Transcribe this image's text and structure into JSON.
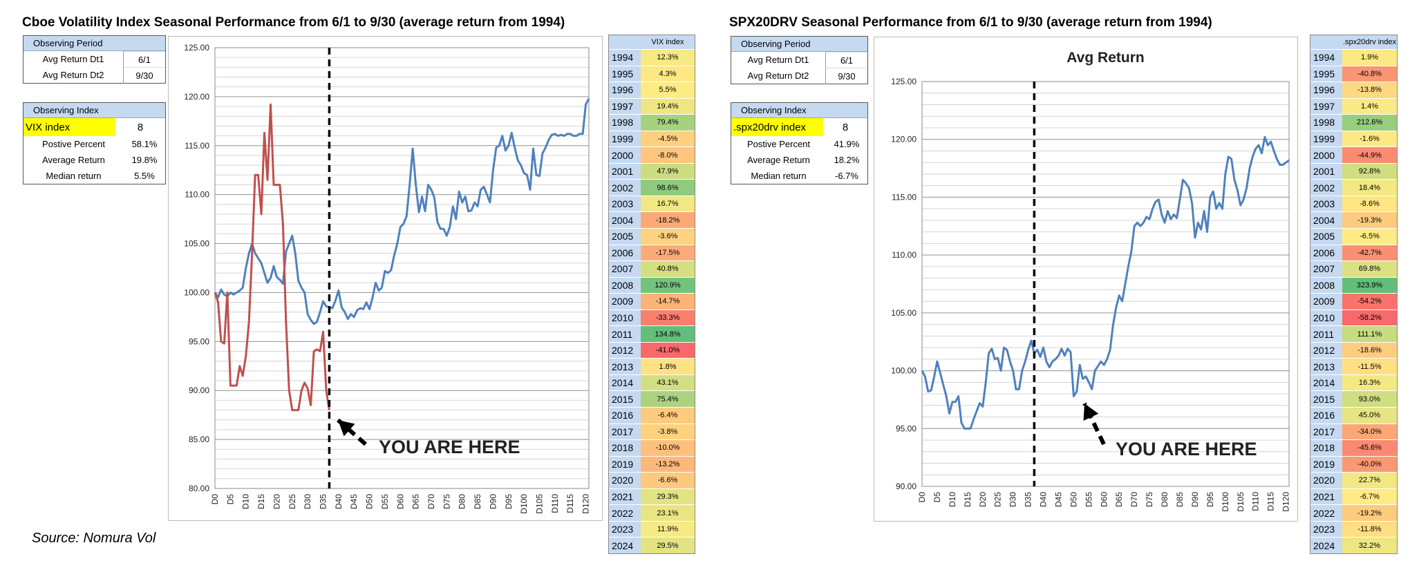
{
  "source": "Source: Nomura Vol",
  "left": {
    "title": "Cboe Volatility Index Seasonal Performance from 6/1 to 9/30 (average return from 1994)",
    "period": {
      "header": "Observing Period",
      "rows": [
        {
          "label": "Avg Return Dt1",
          "value": "6/1"
        },
        {
          "label": "Avg Return Dt2",
          "value": "9/30"
        }
      ]
    },
    "index": {
      "header": "Observing Index",
      "name": "VIX index",
      "count": "8",
      "stats": [
        {
          "label": "Postive Percent",
          "value": "58.1%"
        },
        {
          "label": "Average Return",
          "value": "19.8%"
        },
        {
          "label": "Median return",
          "value": "5.5%"
        }
      ]
    },
    "table": {
      "header": "VIX index",
      "years": [
        "1994",
        "1995",
        "1996",
        "1997",
        "1998",
        "1999",
        "2000",
        "2001",
        "2002",
        "2003",
        "2004",
        "2005",
        "2006",
        "2007",
        "2008",
        "2009",
        "2010",
        "2011",
        "2012",
        "2013",
        "2014",
        "2015",
        "2016",
        "2017",
        "2018",
        "2019",
        "2020",
        "2021",
        "2022",
        "2023",
        "2024"
      ],
      "returns": [
        "12.3%",
        "4.3%",
        "5.5%",
        "19.4%",
        "79.4%",
        "-4.5%",
        "-8.0%",
        "47.9%",
        "98.6%",
        "16.7%",
        "-18.2%",
        "-3.6%",
        "-17.5%",
        "40.8%",
        "120.9%",
        "-14.7%",
        "-33.3%",
        "134.8%",
        "-41.0%",
        "1.8%",
        "43.1%",
        "75.4%",
        "-6.4%",
        "-3.8%",
        "-10.0%",
        "-13.2%",
        "-6.6%",
        "29.3%",
        "23.1%",
        "11.9%",
        "29.5%"
      ]
    }
  },
  "right": {
    "title": "SPX20DRV Seasonal Performance from 6/1 to 9/30 (average return from 1994)",
    "period": {
      "header": "Observing Period",
      "rows": [
        {
          "label": "Avg Return Dt1",
          "value": "6/1"
        },
        {
          "label": "Avg Return Dt2",
          "value": "9/30"
        }
      ]
    },
    "index": {
      "header": "Observing Index",
      "name": ".spx20drv index",
      "count": "8",
      "stats": [
        {
          "label": "Postive Percent",
          "value": "41.9%"
        },
        {
          "label": "Average Return",
          "value": "18.2%"
        },
        {
          "label": "Median return",
          "value": "-6.7%"
        }
      ]
    },
    "table": {
      "header": ".spx20drv index",
      "years": [
        "1994",
        "1995",
        "1996",
        "1997",
        "1998",
        "1999",
        "2000",
        "2001",
        "2002",
        "2003",
        "2004",
        "2005",
        "2006",
        "2007",
        "2008",
        "2009",
        "2010",
        "2011",
        "2012",
        "2013",
        "2014",
        "2015",
        "2016",
        "2017",
        "2018",
        "2019",
        "2020",
        "2021",
        "2022",
        "2023",
        "2024"
      ],
      "returns": [
        "1.9%",
        "-40.8%",
        "-13.8%",
        "1.4%",
        "212.6%",
        "-1.6%",
        "-44.9%",
        "92.8%",
        "18.4%",
        "-8.6%",
        "-19.3%",
        "-6.5%",
        "-42.7%",
        "69.8%",
        "323.9%",
        "-54.2%",
        "-58.2%",
        "111.1%",
        "-18.6%",
        "-11.5%",
        "16.3%",
        "93.0%",
        "45.0%",
        "-34.0%",
        "-45.6%",
        "-40.0%",
        "22.7%",
        "-6.7%",
        "-19.2%",
        "-11.8%",
        "32.2%"
      ]
    }
  },
  "chart_data": [
    {
      "type": "line",
      "title": "",
      "ylim": [
        80,
        125
      ],
      "yticks": [
        "80.00",
        "85.00",
        "90.00",
        "95.00",
        "100.00",
        "105.00",
        "110.00",
        "115.00",
        "120.00",
        "125.00"
      ],
      "xticks": [
        "D0",
        "D5",
        "D10",
        "D15",
        "D20",
        "D25",
        "D30",
        "D35",
        "D40",
        "D45",
        "D50",
        "D55",
        "D60",
        "D65",
        "D70",
        "D75",
        "D80",
        "D85",
        "D90",
        "D95",
        "D100",
        "D105",
        "D110",
        "D115",
        "D120"
      ],
      "grid": true,
      "marker_day": 37,
      "annotation": "YOU ARE HERE",
      "series": [
        {
          "color": "#4f81bd",
          "x": [
            0,
            1,
            2,
            3,
            4,
            5,
            6,
            7,
            8,
            9,
            10,
            11,
            12,
            13,
            14,
            15,
            16,
            17,
            18,
            19,
            20,
            21,
            22,
            23,
            24,
            25,
            26,
            27,
            28,
            29,
            30,
            31,
            32,
            33,
            34,
            35,
            36,
            37,
            38,
            39,
            40,
            41,
            42,
            43,
            44,
            45,
            46,
            47,
            48,
            49,
            50,
            51,
            52,
            53,
            54,
            55,
            56,
            57,
            58,
            59,
            60,
            61,
            62,
            63,
            64,
            65,
            66,
            67,
            68,
            69,
            70,
            71,
            72,
            73,
            74,
            75,
            76,
            77,
            78,
            79,
            80,
            81,
            82,
            83,
            84,
            85,
            86,
            87,
            88,
            89,
            90,
            91,
            92,
            93,
            94,
            95,
            96,
            97,
            98,
            99,
            100,
            101,
            102,
            103,
            104,
            105,
            106,
            107,
            108,
            109,
            110,
            111,
            112,
            113,
            114,
            115,
            116,
            117,
            118,
            119,
            120,
            121
          ],
          "y": [
            100,
            99.5,
            100.3,
            99.8,
            99.6,
            100,
            99.8,
            100,
            100.2,
            100.5,
            102.5,
            104,
            105,
            104,
            103.5,
            103,
            102,
            101,
            101.5,
            102.7,
            101.6,
            101.3,
            100.9,
            104.2,
            105,
            105.8,
            104,
            101.2,
            100.5,
            100,
            97.8,
            97.2,
            96.8,
            97,
            98,
            99.1,
            98.6,
            98.5,
            98.4,
            99.2,
            100.2,
            98.5,
            98,
            97.3,
            97.8,
            97.5,
            98.2,
            98.4,
            98.3,
            99,
            98.3,
            99.5,
            101,
            100.2,
            100.5,
            102.2,
            102,
            102.3,
            103.8,
            105,
            106.7,
            107,
            107.8,
            111,
            114.7,
            111,
            108.2,
            109.8,
            108.3,
            111,
            110.5,
            109.7,
            107.2,
            106.5,
            106.5,
            105.8,
            106.7,
            108.8,
            107.5,
            110.3,
            109.2,
            109.8,
            108.3,
            108.4,
            109.2,
            108.8,
            110.5,
            110.8,
            110,
            109.2,
            112.5,
            114.8,
            115,
            116,
            114.5,
            115,
            116.3,
            114.8,
            113.5,
            113,
            112.2,
            112,
            110.5,
            114.7,
            112,
            111.9,
            114.2,
            114.8,
            115.6,
            116.1,
            116.2,
            116,
            116.1,
            116,
            116.2,
            116.2,
            116,
            116,
            116.2,
            116.2,
            119.2,
            119.8
          ]
        },
        {
          "color": "#c0504d",
          "x": [
            0,
            1,
            2,
            3,
            4,
            5,
            6,
            7,
            8,
            9,
            10,
            11,
            12,
            13,
            14,
            15,
            16,
            17,
            18,
            19,
            20,
            21,
            22,
            23,
            24,
            25,
            26,
            27,
            28,
            29,
            30,
            31,
            32,
            33,
            34,
            35,
            36,
            37
          ],
          "y": [
            100,
            99,
            95,
            94.8,
            100,
            90.5,
            90.5,
            90.5,
            92.5,
            91.5,
            93.5,
            97,
            104,
            112,
            112,
            108,
            116.3,
            111.5,
            119.2,
            111,
            111,
            111,
            107,
            97,
            90,
            88,
            88,
            88,
            90,
            90.8,
            90.2,
            88.5,
            94,
            94.2,
            94,
            96,
            90,
            88
          ]
        }
      ]
    },
    {
      "type": "line",
      "title": "Avg Return",
      "ylim": [
        90,
        125
      ],
      "yticks": [
        "90.00",
        "95.00",
        "100.00",
        "105.00",
        "110.00",
        "115.00",
        "120.00",
        "125.00"
      ],
      "xticks": [
        "D0",
        "D5",
        "D10",
        "D15",
        "D20",
        "D25",
        "D30",
        "D35",
        "D40",
        "D45",
        "D50",
        "D55",
        "D60",
        "D65",
        "D70",
        "D75",
        "D80",
        "D85",
        "D90",
        "D95",
        "D100",
        "D105",
        "D110",
        "D115",
        "D120"
      ],
      "grid": true,
      "marker_day": 37,
      "annotation": "YOU ARE HERE",
      "series": [
        {
          "color": "#4f81bd",
          "x": [
            0,
            1,
            2,
            3,
            4,
            5,
            6,
            7,
            8,
            9,
            10,
            11,
            12,
            13,
            14,
            15,
            16,
            17,
            18,
            19,
            20,
            21,
            22,
            23,
            24,
            25,
            26,
            27,
            28,
            29,
            30,
            31,
            32,
            33,
            34,
            35,
            36,
            37,
            38,
            39,
            40,
            41,
            42,
            43,
            44,
            45,
            46,
            47,
            48,
            49,
            50,
            51,
            52,
            53,
            54,
            55,
            56,
            57,
            58,
            59,
            60,
            61,
            62,
            63,
            64,
            65,
            66,
            67,
            68,
            69,
            70,
            71,
            72,
            73,
            74,
            75,
            76,
            77,
            78,
            79,
            80,
            81,
            82,
            83,
            84,
            85,
            86,
            87,
            88,
            89,
            90,
            91,
            92,
            93,
            94,
            95,
            96,
            97,
            98,
            99,
            100,
            101,
            102,
            103,
            104,
            105,
            106,
            107,
            108,
            109,
            110,
            111,
            112,
            113,
            114,
            115,
            116,
            117,
            118,
            119,
            120,
            121
          ],
          "y": [
            100,
            99.5,
            98.2,
            98.3,
            99.5,
            100.8,
            99.8,
            98.8,
            97.8,
            96.3,
            97.3,
            97.3,
            97.8,
            95.5,
            95,
            95,
            95,
            95.8,
            96.5,
            97.2,
            96.9,
            99,
            101.5,
            101.9,
            101,
            101.1,
            100,
            102,
            101.8,
            100.8,
            100,
            98.4,
            98.4,
            100,
            100.8,
            101.8,
            102.6,
            101.5,
            101.8,
            101.2,
            102,
            100.8,
            100.3,
            100.8,
            101,
            101.3,
            101.9,
            101.3,
            101.9,
            101.6,
            97.8,
            98.2,
            100.5,
            99.3,
            99.5,
            99,
            98.4,
            100,
            100.4,
            100.8,
            100.5,
            101,
            101.8,
            104,
            105.5,
            106.5,
            106,
            107.5,
            109,
            110.3,
            112.5,
            112.8,
            112.5,
            112.8,
            113.3,
            113.1,
            114,
            114.6,
            114.8,
            113.5,
            112.8,
            113.8,
            113.1,
            113.5,
            113.2,
            114.8,
            116.5,
            116.2,
            115.8,
            114.5,
            111.5,
            112.8,
            112.2,
            113.8,
            112,
            115,
            115.5,
            114,
            114.5,
            114,
            117,
            118.5,
            118.3,
            116.5,
            115.6,
            114.3,
            114.8,
            115.8,
            117.5,
            118.5,
            119.2,
            119.5,
            118.8,
            120.2,
            119.5,
            119.8,
            119,
            118.3,
            117.8,
            117.8,
            118,
            118.2
          ]
        }
      ]
    }
  ]
}
